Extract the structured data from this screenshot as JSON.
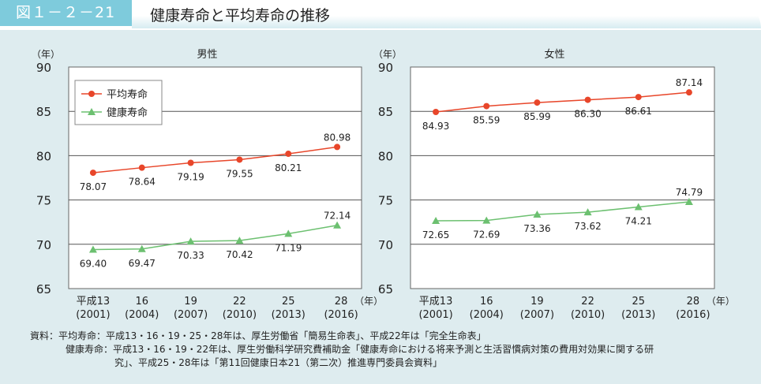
{
  "header": {
    "figure_no": "図１－２－21",
    "title": "健康寿命と平均寿命の推移"
  },
  "colors": {
    "avg": "#e8462a",
    "healthy": "#6cc070",
    "header": "#7ecbdc",
    "background": "#deecef"
  },
  "chart_data": [
    {
      "type": "line",
      "title": "男性",
      "ylabel": "（年）",
      "xunit": "（年）",
      "ylim": [
        65,
        90
      ],
      "yticks": [
        65,
        70,
        75,
        80,
        85,
        90
      ],
      "grid": true,
      "legend": "top-left",
      "categories": [
        "平成13|(2001)",
        "16|(2004)",
        "19|(2007)",
        "22|(2010)",
        "25|(2013)",
        "28|(2016)"
      ],
      "series": [
        {
          "name": "平均寿命",
          "values": [
            78.07,
            78.64,
            79.19,
            79.55,
            80.21,
            80.98
          ],
          "labels": [
            "78.07",
            "78.64",
            "79.19",
            "79.55",
            "80.21",
            "80.98"
          ]
        },
        {
          "name": "健康寿命",
          "values": [
            69.4,
            69.47,
            70.33,
            70.42,
            71.19,
            72.14
          ],
          "labels": [
            "69.40",
            "69.47",
            "70.33",
            "70.42",
            "71.19",
            "72.14"
          ]
        }
      ]
    },
    {
      "type": "line",
      "title": "女性",
      "ylabel": "（年）",
      "xunit": "（年）",
      "ylim": [
        65,
        90
      ],
      "yticks": [
        65,
        70,
        75,
        80,
        85,
        90
      ],
      "grid": true,
      "categories": [
        "平成13|(2001)",
        "16|(2004)",
        "19|(2007)",
        "22|(2010)",
        "25|(2013)",
        "28|(2016)"
      ],
      "series": [
        {
          "name": "平均寿命",
          "values": [
            84.93,
            85.59,
            85.99,
            86.3,
            86.61,
            87.14
          ],
          "labels": [
            "84.93",
            "85.59",
            "85.99",
            "86.30",
            "86.61",
            "87.14"
          ]
        },
        {
          "name": "健康寿命",
          "values": [
            72.65,
            72.69,
            73.36,
            73.62,
            74.21,
            74.79
          ],
          "labels": [
            "72.65",
            "72.69",
            "73.36",
            "73.62",
            "74.21",
            "74.79"
          ]
        }
      ]
    }
  ],
  "source": {
    "line1": "資料：平均寿命：平成13・16・19・25・28年は、厚生労働省「簡易生命表」、平成22年は「完全生命表」",
    "line2": "健康寿命：平成13・16・19・22年は、厚生労働科学研究費補助金「健康寿命における将来予測と生活習慣病対策の費用対効果に関する研",
    "line3": "究」、平成25・28年は「第11回健康日本21（第二次）推進専門委員会資料」"
  }
}
